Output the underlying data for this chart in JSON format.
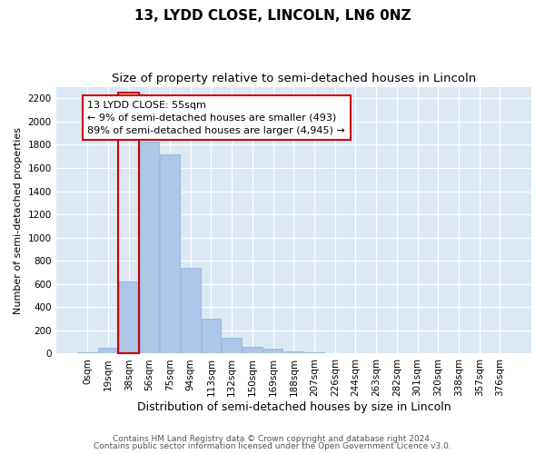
{
  "title": "13, LYDD CLOSE, LINCOLN, LN6 0NZ",
  "subtitle": "Size of property relative to semi-detached houses in Lincoln",
  "xlabel": "Distribution of semi-detached houses by size in Lincoln",
  "ylabel": "Number of semi-detached properties",
  "footnote1": "Contains HM Land Registry data © Crown copyright and database right 2024.",
  "footnote2": "Contains public sector information licensed under the Open Government Licence v3.0.",
  "bin_labels": [
    "0sqm",
    "19sqm",
    "38sqm",
    "56sqm",
    "75sqm",
    "94sqm",
    "113sqm",
    "132sqm",
    "150sqm",
    "169sqm",
    "188sqm",
    "207sqm",
    "226sqm",
    "244sqm",
    "263sqm",
    "282sqm",
    "301sqm",
    "320sqm",
    "338sqm",
    "357sqm",
    "376sqm"
  ],
  "bar_values": [
    10,
    50,
    620,
    1830,
    1720,
    740,
    300,
    140,
    60,
    40,
    20,
    10,
    0,
    0,
    0,
    0,
    0,
    0,
    0,
    0,
    0
  ],
  "bar_color": "#aec6e8",
  "bar_edgecolor": "#8fb8d8",
  "highlight_bar_index": 2,
  "highlight_edgecolor": "#cc0000",
  "annotation_line1": "13 LYDD CLOSE: 55sqm",
  "annotation_line2": "← 9% of semi-detached houses are smaller (493)",
  "annotation_line3": "89% of semi-detached houses are larger (4,945) →",
  "annotation_box_edgecolor": "#cc0000",
  "annotation_box_facecolor": "#ffffff",
  "ylim": [
    0,
    2300
  ],
  "yticks": [
    0,
    200,
    400,
    600,
    800,
    1000,
    1200,
    1400,
    1600,
    1800,
    2000,
    2200
  ],
  "axes_background_color": "#dce9f5",
  "grid_color": "#ffffff",
  "title_fontsize": 11,
  "subtitle_fontsize": 9.5,
  "annotation_fontsize": 8,
  "tick_fontsize": 7.5,
  "ylabel_fontsize": 8,
  "xlabel_fontsize": 9
}
